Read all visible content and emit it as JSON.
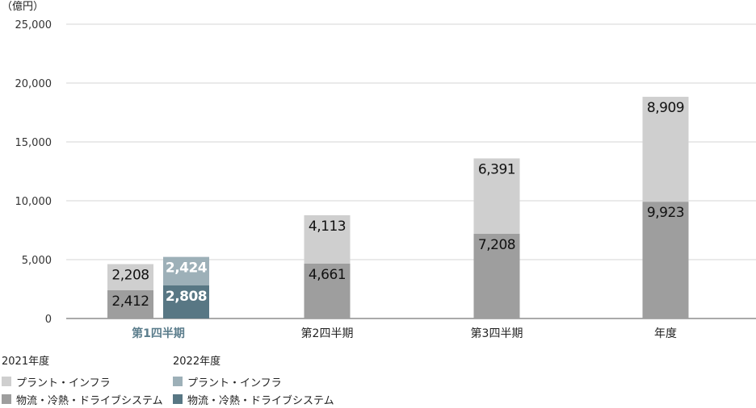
{
  "chart_data": {
    "type": "bar",
    "stacked": true,
    "unit_label": "（億円）",
    "ylim": [
      0,
      25000
    ],
    "yticks": [
      0,
      5000,
      10000,
      15000,
      20000,
      25000
    ],
    "ytick_labels": [
      "0",
      "5,000",
      "10,000",
      "15,000",
      "20,000",
      "25,000"
    ],
    "grid": true,
    "legend_position": "bottom-left",
    "categories": [
      "第1四半期",
      "第2四半期",
      "第3四半期",
      "年度"
    ],
    "highlight_category": "第1四半期",
    "highlight_color": "#5b7d8c",
    "groups": [
      {
        "name": "2021年度",
        "series": [
          {
            "name": "物流・冷熱・ドライブシステム",
            "color": "#9e9e9e",
            "values": [
              2412,
              4661,
              7208,
              9923
            ],
            "labels": [
              "2,412",
              "4,661",
              "7,208",
              "9,923"
            ]
          },
          {
            "name": "プラント・インフラ",
            "color": "#cfcfcf",
            "values": [
              2208,
              4113,
              6391,
              8909
            ],
            "labels": [
              "2,208",
              "4,113",
              "6,391",
              "8,909"
            ]
          }
        ]
      },
      {
        "name": "2022年度",
        "series": [
          {
            "name": "物流・冷熱・ドライブシステム",
            "color": "#587784",
            "values": [
              2808,
              null,
              null,
              null
            ],
            "labels": [
              "2,808",
              "",
              "",
              ""
            ]
          },
          {
            "name": "プラント・インフラ",
            "color": "#9db0b8",
            "values": [
              2424,
              null,
              null,
              null
            ],
            "labels": [
              "2,424",
              "",
              "",
              ""
            ]
          }
        ]
      }
    ]
  }
}
